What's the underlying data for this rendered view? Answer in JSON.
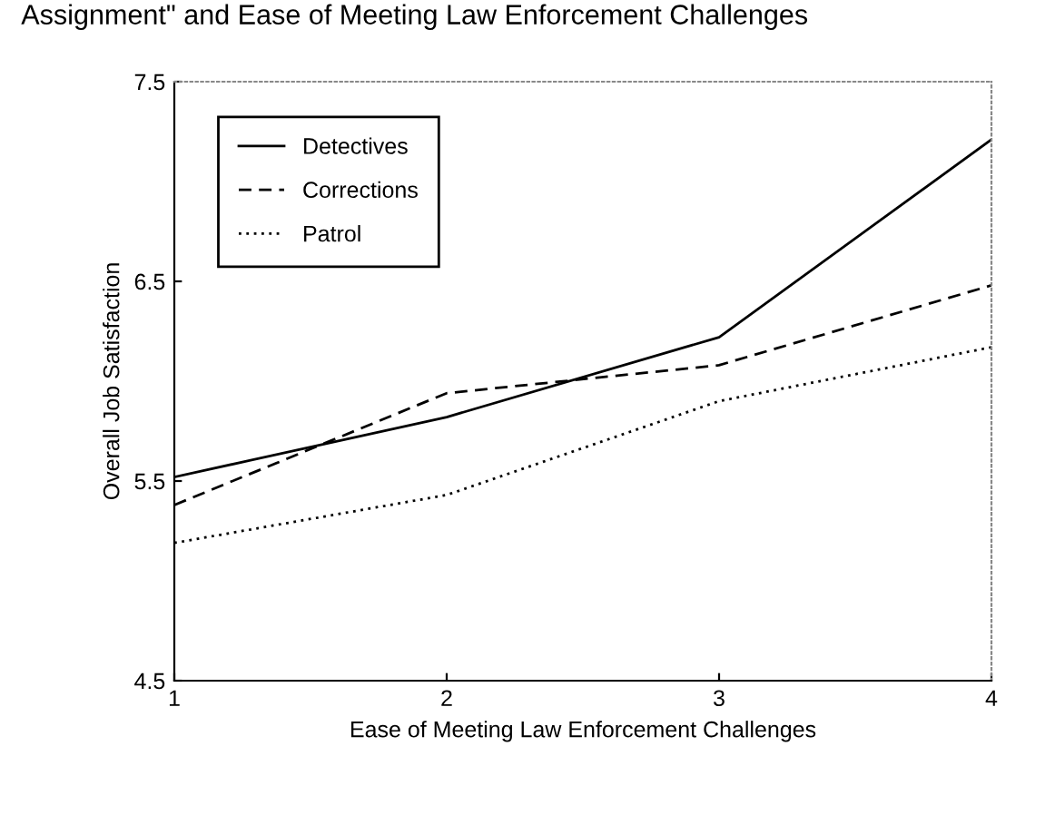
{
  "chart_data": {
    "type": "line",
    "title": "Assignment\" and Ease of Meeting Law Enforcement Challenges",
    "xlabel": "Ease of Meeting Law Enforcement Challenges",
    "ylabel": "Overall Job Satisfaction",
    "x": [
      1,
      2,
      3,
      4
    ],
    "xlim": [
      1,
      4
    ],
    "xticks": [
      1,
      2,
      3,
      4
    ],
    "ylim": [
      4.5,
      7.5
    ],
    "yticks": [
      4.5,
      5.5,
      6.5,
      7.5
    ],
    "grid": false,
    "legend": "top left",
    "series": [
      {
        "name": "Detectives",
        "color": "#000000",
        "line_style": "solid",
        "values": [
          5.52,
          5.82,
          6.22,
          7.21
        ]
      },
      {
        "name": "Corrections",
        "color": "#000000",
        "line_style": "dashed",
        "values": [
          5.38,
          5.94,
          6.08,
          6.48
        ]
      },
      {
        "name": "Patrol",
        "color": "#000000",
        "line_style": "dotted",
        "values": [
          5.19,
          5.43,
          5.9,
          6.17
        ]
      }
    ]
  }
}
